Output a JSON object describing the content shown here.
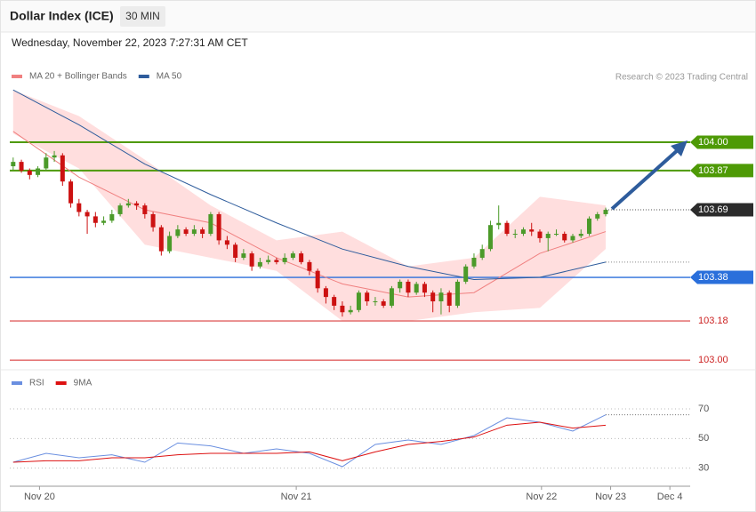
{
  "header": {
    "title": "Dollar Index (ICE)",
    "interval": "30 MIN",
    "timestamp": "Wednesday, November 22, 2023 7:27:31 AM CET"
  },
  "chart_data": [
    {
      "type": "candlestick",
      "credit": "Research © 2023 Trading Central",
      "up_color": "#4b9a29",
      "down_color": "#cc1111",
      "xlim": [
        -1.6,
        82.7
      ],
      "ylim": [
        102.96,
        104.245
      ],
      "open": [
        103.89,
        103.91,
        103.87,
        103.85,
        103.88,
        103.93,
        103.94,
        103.82,
        103.72,
        103.68,
        103.66,
        103.63,
        103.64,
        103.67,
        103.71,
        103.72,
        103.71,
        103.67,
        103.61,
        103.5,
        103.57,
        103.6,
        103.58,
        103.6,
        103.58,
        103.67,
        103.55,
        103.53,
        103.47,
        103.49,
        103.43,
        103.45,
        103.46,
        103.45,
        103.47,
        103.49,
        103.45,
        103.41,
        103.33,
        103.29,
        103.25,
        103.22,
        103.23,
        103.31,
        103.27,
        103.27,
        103.25,
        103.33,
        103.36,
        103.31,
        103.35,
        103.31,
        103.27,
        103.31,
        103.25,
        103.36,
        103.43,
        103.47,
        103.51,
        103.62,
        103.63,
        103.58,
        103.58,
        103.6,
        103.59,
        103.56,
        103.58,
        103.58,
        103.55,
        103.57,
        103.58,
        103.65,
        103.67
      ],
      "high": [
        103.93,
        103.92,
        103.88,
        103.89,
        103.95,
        103.96,
        103.95,
        103.83,
        103.74,
        103.69,
        103.68,
        103.66,
        103.69,
        103.72,
        103.74,
        103.73,
        103.72,
        103.68,
        103.62,
        103.59,
        103.62,
        103.61,
        103.62,
        103.61,
        103.68,
        103.68,
        103.57,
        103.54,
        103.51,
        103.5,
        103.47,
        103.48,
        103.47,
        103.49,
        103.5,
        103.5,
        103.46,
        103.42,
        103.34,
        103.3,
        103.27,
        103.25,
        103.32,
        103.32,
        103.29,
        103.28,
        103.34,
        103.37,
        103.37,
        103.36,
        103.36,
        103.32,
        103.33,
        103.32,
        103.37,
        103.44,
        103.49,
        103.53,
        103.64,
        103.71,
        103.64,
        103.6,
        103.61,
        103.63,
        103.6,
        103.59,
        103.6,
        103.59,
        103.58,
        103.6,
        103.66,
        103.68,
        103.7
      ],
      "low": [
        103.87,
        103.86,
        103.83,
        103.84,
        103.87,
        103.91,
        103.8,
        103.7,
        103.66,
        103.58,
        103.61,
        103.62,
        103.63,
        103.66,
        103.7,
        103.69,
        103.65,
        103.59,
        103.48,
        103.49,
        103.56,
        103.57,
        103.57,
        103.56,
        103.57,
        103.53,
        103.51,
        103.45,
        103.46,
        103.41,
        103.42,
        103.44,
        103.44,
        103.44,
        103.46,
        103.44,
        103.39,
        103.31,
        103.26,
        103.23,
        103.2,
        103.21,
        103.22,
        103.25,
        103.25,
        103.24,
        103.24,
        103.31,
        103.29,
        103.3,
        103.29,
        103.22,
        103.21,
        103.22,
        103.24,
        103.35,
        103.42,
        103.46,
        103.5,
        103.6,
        103.57,
        103.56,
        103.57,
        103.57,
        103.54,
        103.5,
        103.57,
        103.54,
        103.54,
        103.56,
        103.57,
        103.64,
        103.66
      ],
      "close": [
        103.91,
        103.87,
        103.85,
        103.88,
        103.93,
        103.94,
        103.82,
        103.72,
        103.68,
        103.66,
        103.63,
        103.64,
        103.67,
        103.71,
        103.72,
        103.71,
        103.67,
        103.61,
        103.5,
        103.57,
        103.6,
        103.58,
        103.6,
        103.58,
        103.67,
        103.55,
        103.53,
        103.47,
        103.49,
        103.43,
        103.45,
        103.46,
        103.45,
        103.47,
        103.49,
        103.45,
        103.41,
        103.33,
        103.29,
        103.25,
        103.22,
        103.23,
        103.31,
        103.27,
        103.27,
        103.25,
        103.33,
        103.36,
        103.31,
        103.35,
        103.31,
        103.27,
        103.31,
        103.25,
        103.36,
        103.43,
        103.47,
        103.51,
        103.62,
        103.63,
        103.58,
        103.58,
        103.6,
        103.59,
        103.56,
        103.58,
        103.58,
        103.55,
        103.57,
        103.58,
        103.65,
        103.67,
        103.69
      ],
      "series": [
        {
          "name": "MA 20 + Bollinger Bands",
          "color": "#f08080",
          "band_color": "#ffdede",
          "x": [
            0,
            8,
            16,
            24,
            32,
            40,
            48,
            56,
            64,
            72
          ],
          "values": [
            104.05,
            103.84,
            103.69,
            103.63,
            103.47,
            103.35,
            103.29,
            103.31,
            103.49,
            103.59
          ],
          "upper": [
            104.24,
            104.12,
            103.92,
            103.71,
            103.55,
            103.59,
            103.43,
            103.47,
            103.75,
            103.71
          ],
          "lower": [
            104.04,
            103.88,
            103.53,
            103.47,
            103.41,
            103.18,
            103.18,
            103.22,
            103.24,
            103.51
          ]
        },
        {
          "name": "MA 50",
          "color": "#2e5c9c",
          "x": [
            0,
            8,
            16,
            24,
            32,
            40,
            48,
            56,
            64,
            72
          ],
          "values": [
            104.24,
            104.08,
            103.9,
            103.76,
            103.63,
            103.51,
            103.43,
            103.37,
            103.38,
            103.45
          ]
        }
      ],
      "levels": [
        {
          "value": 104,
          "label": "104.00",
          "color": "#4e9a06",
          "boxed": true
        },
        {
          "value": 103.87,
          "label": "103.87",
          "color": "#4e9a06",
          "boxed": true
        },
        {
          "value": 103.38,
          "label": "103.38",
          "color": "#2a6fdb",
          "boxed": true
        },
        {
          "value": 103.18,
          "label": "103.18",
          "color": "#e06060",
          "boxed": false
        },
        {
          "value": 103,
          "label": "103.00",
          "color": "#e06060",
          "boxed": false
        }
      ],
      "last_price": {
        "value": 103.69,
        "label": "103.69",
        "color": "#2b2b2b"
      }
    },
    {
      "type": "line",
      "xlim": [
        -1.6,
        82.7
      ],
      "ylim": [
        19,
        91
      ],
      "yticks": [
        30,
        50,
        70
      ],
      "xticks": [
        {
          "value": 3.2,
          "label": "Nov 20"
        },
        {
          "value": 34.4,
          "label": "Nov 21"
        },
        {
          "value": 64.2,
          "label": "Nov 22"
        },
        {
          "value": 72.6,
          "label": "Nov 23"
        },
        {
          "value": 79.8,
          "label": "Dec 4"
        }
      ],
      "series": [
        {
          "name": "RSI",
          "color": "#6a8fe0",
          "x": [
            0,
            4,
            8,
            12,
            16,
            20,
            24,
            28,
            32,
            36,
            40,
            44,
            48,
            52,
            56,
            60,
            64,
            68,
            72
          ],
          "values": [
            34,
            40,
            37,
            39,
            34,
            47,
            45,
            40,
            43,
            40,
            31,
            46,
            49,
            46,
            52,
            64,
            61,
            55,
            66
          ]
        },
        {
          "name": "9MA",
          "color": "#dd1111",
          "x": [
            0,
            4,
            8,
            12,
            16,
            20,
            24,
            28,
            32,
            36,
            40,
            44,
            48,
            52,
            56,
            60,
            64,
            68,
            72
          ],
          "values": [
            34,
            35,
            35,
            37,
            37,
            39,
            40,
            40,
            40,
            41,
            35,
            41,
            46,
            48,
            51,
            59,
            61,
            57,
            59
          ]
        }
      ]
    }
  ]
}
